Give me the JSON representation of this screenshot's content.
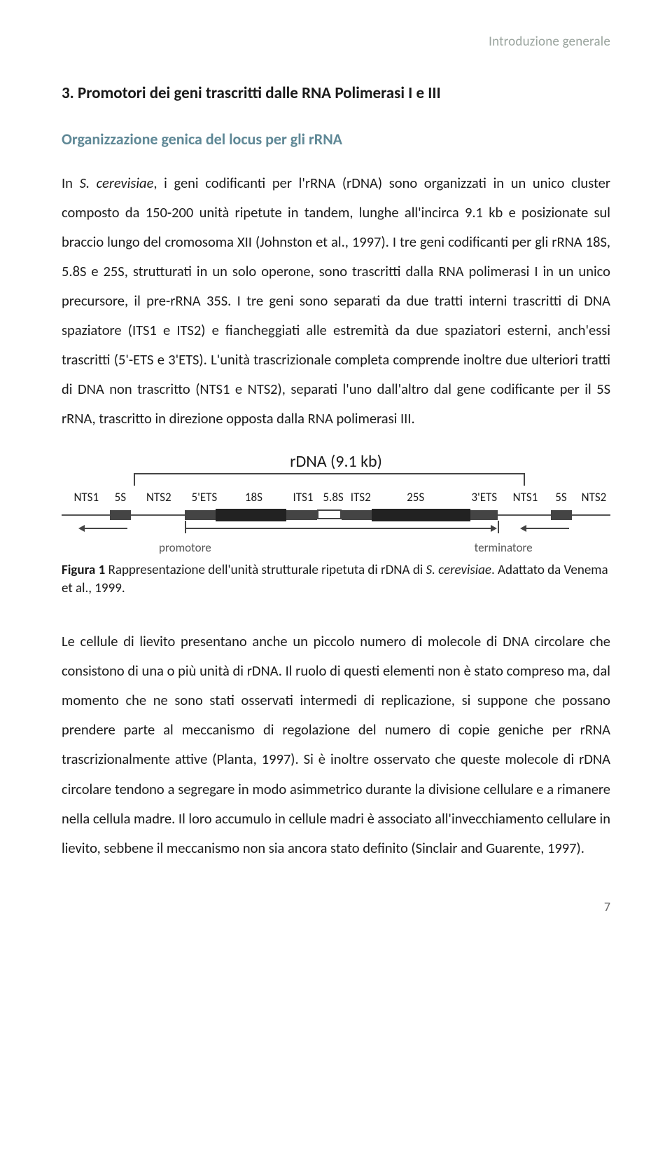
{
  "colors": {
    "text": "#1a1a1a",
    "header": "#9aa49e",
    "subsection": "#5f8896",
    "muted": "#666666",
    "line": "#555555",
    "seg_dark": "#222222",
    "seg_border": "#444444",
    "bg": "#ffffff"
  },
  "header": "Introduzione generale",
  "section_title": "3. Promotori dei geni trascritti dalle RNA Polimerasi I e III",
  "subsection_title": "Organizzazione genica del locus per gli rRNA",
  "para1_a": "In ",
  "para1_b": "S. cerevisiae",
  "para1_c": ", i geni codificanti per l'rRNA (rDNA) sono organizzati in un unico cluster composto da 150-200 unità ripetute in tandem, lunghe all'incirca 9.1 kb e posizionate sul braccio lungo del cromosoma XII (Johnston et al., 1997). I tre geni codificanti per gli rRNA 18S, 5.8S e 25S, strutturati in un solo operone, sono trascritti dalla RNA polimerasi I in un unico precursore, il pre-rRNA 35S. I tre geni sono separati da due tratti interni trascritti di DNA spaziatore (ITS1 e ITS2) e fiancheggiati alle estremità da due spaziatori esterni, anch'essi trascritti (5'-ETS e 3'ETS). L'unità trascrizionale completa comprende inoltre due ulteriori tratti di DNA non trascritto (NTS1 e NTS2), separati l'uno dall'altro dal gene codificante per il 5S rRNA, trascritto in direzione opposta dalla RNA polimerasi III.",
  "figure": {
    "title": "rDNA (9.1 kb)",
    "bracket": {
      "left_pct": 13.2,
      "right_pct": 84.5
    },
    "track": {
      "left_pct": 0,
      "right_pct": 100
    },
    "top_labels": [
      {
        "text": "NTS1",
        "x": 4.5
      },
      {
        "text": "5S",
        "x": 10.7
      },
      {
        "text": "NTS2",
        "x": 17.7
      },
      {
        "text": "5'ETS",
        "x": 26.0
      },
      {
        "text": "18S",
        "x": 35.0
      },
      {
        "text": "ITS1",
        "x": 44.0
      },
      {
        "text": "5.8S",
        "x": 49.5
      },
      {
        "text": "ITS2",
        "x": 54.5
      },
      {
        "text": "25S",
        "x": 64.5
      },
      {
        "text": "3'ETS",
        "x": 77.0
      },
      {
        "text": "NTS1",
        "x": 84.5
      },
      {
        "text": "5S",
        "x": 91.0
      },
      {
        "text": "NTS2",
        "x": 97.0
      }
    ],
    "segments": [
      {
        "kind": "med",
        "l": 8.8,
        "w": 3.8
      },
      {
        "kind": "med",
        "l": 22.5,
        "w": 5.5
      },
      {
        "kind": "fat",
        "l": 28.0,
        "w": 13.0
      },
      {
        "kind": "med",
        "l": 41.0,
        "w": 5.5
      },
      {
        "kind": "white",
        "l": 46.5,
        "w": 4.5
      },
      {
        "kind": "med",
        "l": 51.0,
        "w": 5.5
      },
      {
        "kind": "fat",
        "l": 56.5,
        "w": 18.0
      },
      {
        "kind": "med",
        "l": 74.5,
        "w": 5.0
      },
      {
        "kind": "med",
        "l": 89.2,
        "w": 3.8
      }
    ],
    "arrows": [
      {
        "dir": "left",
        "l": 4.0,
        "w": 8.0
      },
      {
        "dir": "right",
        "l": 22.5,
        "w": 56.0
      },
      {
        "dir": "left",
        "l": 84.5,
        "w": 8.0
      }
    ],
    "ticks": [
      {
        "x": 22.5
      },
      {
        "x": 79.5
      }
    ],
    "below_labels": [
      {
        "text": "promotore",
        "x": 22.5
      },
      {
        "text": "terminatore",
        "x": 80.5
      }
    ]
  },
  "caption_bold": "Figura 1",
  "caption_a": " Rappresentazione dell'unità strutturale ripetuta di rDNA di ",
  "caption_i": "S. cerevisiae",
  "caption_b": ". Adattato da Venema et al., 1999.",
  "para2": "Le cellule di lievito presentano anche un piccolo numero di molecole di DNA circolare che consistono di una o più unità di rDNA. Il ruolo di questi elementi non è stato compreso ma, dal momento che ne sono stati osservati intermedi di replicazione, si suppone che possano prendere parte al meccanismo di regolazione del numero di copie geniche per rRNA trascrizionalmente attive (Planta, 1997). Si è inoltre osservato che queste molecole di rDNA circolare tendono a segregare in modo asimmetrico durante la divisione cellulare e a rimanere nella cellula madre. Il loro accumulo in cellule madri è associato all'invecchiamento cellulare in lievito, sebbene il meccanismo non sia ancora stato definito (Sinclair and Guarente, 1997).",
  "page_number": "7"
}
